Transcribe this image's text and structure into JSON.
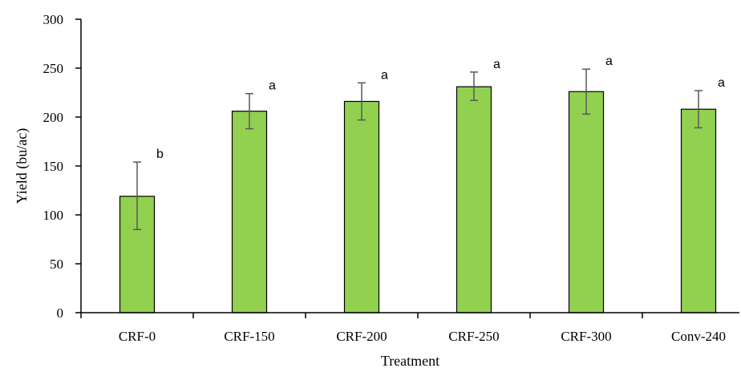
{
  "chart_data": {
    "type": "bar",
    "title": "",
    "xlabel": "Treatment",
    "ylabel": "Yield (bu/ac)",
    "ylim": [
      0,
      300
    ],
    "yticks": [
      0,
      50,
      100,
      150,
      200,
      250,
      300
    ],
    "categories": [
      "CRF-0",
      "CRF-150",
      "CRF-200",
      "CRF-250",
      "CRF-300",
      "Conv-240"
    ],
    "values": [
      119,
      206,
      216,
      231,
      226,
      208
    ],
    "error_low": [
      85,
      188,
      197,
      217,
      203,
      189
    ],
    "error_high": [
      154,
      224,
      235,
      246,
      249,
      227
    ],
    "significance_letters": [
      "b",
      "a",
      "a",
      "a",
      "a",
      "a"
    ],
    "bar_color": "#92d050",
    "bar_edge_color": "#000000",
    "error_bar_color": "#595959",
    "grid": false,
    "legend": "none"
  }
}
